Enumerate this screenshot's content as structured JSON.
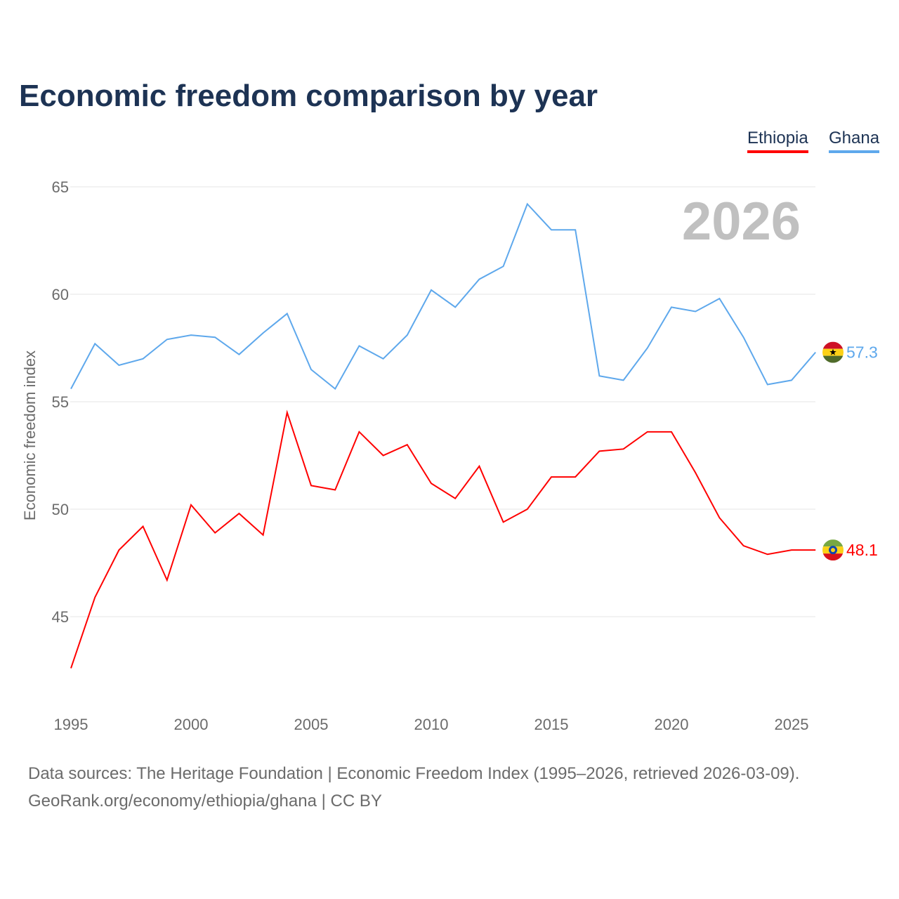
{
  "title": "Economic freedom comparison by year",
  "year_watermark": "2026",
  "footer": {
    "line1": "Data sources: The Heritage Foundation | Economic Freedom Index (1995–2026, retrieved 2026-03-09).",
    "line2": "GeoRank.org/economy/ethiopia/ghana | CC BY"
  },
  "chart_data": {
    "type": "line",
    "title": "Economic freedom comparison by year",
    "xlabel": "",
    "ylabel": "Economic freedom index",
    "xlim": [
      1995,
      2026
    ],
    "ylim": [
      41,
      66.5
    ],
    "yticks": [
      45,
      50,
      55,
      60,
      65
    ],
    "xticks": [
      1995,
      2000,
      2005,
      2010,
      2015,
      2020,
      2025
    ],
    "grid": true,
    "legend_placement": "top-right",
    "x": [
      1995,
      1996,
      1997,
      1998,
      1999,
      2000,
      2001,
      2002,
      2003,
      2004,
      2005,
      2006,
      2007,
      2008,
      2009,
      2010,
      2011,
      2012,
      2013,
      2014,
      2015,
      2016,
      2017,
      2018,
      2019,
      2020,
      2021,
      2022,
      2023,
      2024,
      2025,
      2026
    ],
    "series": [
      {
        "name": "Ethiopia",
        "color": "#ff0000",
        "end_label": "48.1",
        "flag": "ethiopia-flag",
        "values": [
          42.6,
          45.9,
          48.1,
          49.2,
          46.7,
          50.2,
          48.9,
          49.8,
          48.8,
          54.5,
          51.1,
          50.9,
          53.6,
          52.5,
          53.0,
          51.2,
          50.5,
          52.0,
          49.4,
          50.0,
          51.5,
          51.5,
          52.7,
          52.8,
          53.6,
          53.6,
          51.7,
          49.6,
          48.3,
          47.9,
          48.1,
          48.1
        ]
      },
      {
        "name": "Ghana",
        "color": "#5ea8ec",
        "end_label": "57.3",
        "flag": "ghana-flag",
        "values": [
          55.6,
          57.7,
          56.7,
          57.0,
          57.9,
          58.1,
          58.0,
          57.2,
          58.2,
          59.1,
          56.5,
          55.6,
          57.6,
          57.0,
          58.1,
          60.2,
          59.4,
          60.7,
          61.3,
          64.2,
          63.0,
          63.0,
          56.2,
          56.0,
          57.5,
          59.4,
          59.2,
          59.8,
          58.0,
          55.8,
          56.0,
          57.3
        ]
      }
    ]
  }
}
